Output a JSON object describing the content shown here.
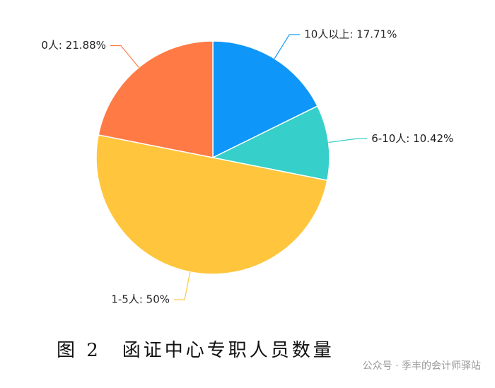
{
  "chart_data": {
    "type": "pie",
    "values": [
      17.71,
      10.42,
      50,
      21.88
    ],
    "value_labels": [
      "10人以上: 17.71%",
      "6-10人: 10.42%",
      "1-5人: 50%",
      "0人: 21.88%"
    ],
    "colors": [
      "#0e96f8",
      "#36cfc9",
      "#ffc53d",
      "#ff7a45"
    ]
  },
  "caption": "图 2　函证中心专职人员数量",
  "watermark": "公众号 · 季丰的会计师驿站"
}
